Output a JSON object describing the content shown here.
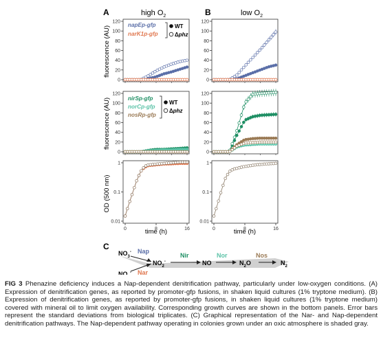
{
  "panel_labels": {
    "A": "A",
    "B": "B",
    "C": "C"
  },
  "conditions": {
    "high": "high O",
    "low": "low O",
    "sub2": "2"
  },
  "axis": {
    "fluorescence": "fluorescence (AU)",
    "od": "OD (500 nm)",
    "time": "time (h)"
  },
  "legend": {
    "wt": "WT",
    "phz": "phz",
    "delta": "Δ",
    "top": [
      "napEp-gfp",
      "narK1p-gfp"
    ],
    "mid": [
      "nirSp-gfp",
      "norCp-gfp",
      "nosRp-gfp"
    ]
  },
  "colors": {
    "nap": "#5b6fa8",
    "nar": "#e07850",
    "nir": "#1f8f64",
    "nor": "#5cc3a8",
    "nos": "#9a7a55",
    "od": "#8a7a66",
    "shade": "#c8c8c8"
  },
  "pathway": {
    "no3_top": "NO",
    "no3_bottom": "NO",
    "no3_sub": "3",
    "no3_sup": "-",
    "nap": "Nap",
    "nar": "Nar",
    "no2": "NO",
    "no2_sub": "2",
    "no2_sup": "-",
    "nir": "Nir",
    "no": "NO",
    "nor": "Nor",
    "n2o": "N",
    "n2o_sub": "2",
    "n2o_tail": "O",
    "nos": "Nos",
    "n2": "N",
    "n2_sub": "2"
  },
  "caption": {
    "fig": "FIG 3",
    "text": "Phenazine deficiency induces a Nap-dependent denitrification pathway, particularly under low-oxygen conditions. (A) Expression of denitrification genes, as reported by promoter-gfp fusions, in shaken liquid cultures (1% tryptone medium). (B) Expression of denitrification genes, as reported by promoter-gfp fusions, in shaken liquid cultures (1% tryptone medium) covered with mineral oil to limit oxygen availability. Corresponding growth curves are shown in the bottom panels. Error bars represent the standard deviations from biological triplicates. (C) Graphical representation of the Nar- and Nap-dependent denitrification pathways. The Nap-dependent pathway operating in colonies grown under an oxic atmosphere is shaded gray."
  },
  "chart_data": [
    {
      "type": "line",
      "panel": "A-top",
      "title": "high O2",
      "ylabel": "fluorescence (AU)",
      "x": [
        0,
        2,
        4,
        6,
        8,
        10,
        12,
        14,
        16
      ],
      "xlim": [
        0,
        16
      ],
      "ylim": [
        0,
        120
      ],
      "yticks": [
        0,
        20,
        40,
        60,
        80,
        100,
        120
      ],
      "series": [
        {
          "name": "napEp-gfp WT",
          "color": "#5b6fa8",
          "marker": "filled",
          "values": [
            0,
            0,
            0,
            2,
            6,
            12,
            16,
            21,
            26
          ]
        },
        {
          "name": "napEp-gfp Δphz",
          "color": "#5b6fa8",
          "marker": "open",
          "values": [
            0,
            0,
            0,
            8,
            18,
            26,
            32,
            37,
            40
          ]
        },
        {
          "name": "narK1p-gfp WT",
          "color": "#e07850",
          "marker": "filled",
          "values": [
            0,
            0,
            0,
            0,
            0,
            0,
            0,
            0,
            0
          ]
        },
        {
          "name": "narK1p-gfp Δphz",
          "color": "#e07850",
          "marker": "open",
          "values": [
            0,
            0,
            0,
            0,
            0,
            0,
            0,
            0,
            0
          ]
        }
      ]
    },
    {
      "type": "line",
      "panel": "B-top",
      "title": "low O2",
      "x": [
        0,
        2,
        4,
        6,
        8,
        10,
        12,
        14,
        16
      ],
      "xlim": [
        0,
        16
      ],
      "ylim": [
        0,
        120
      ],
      "yticks": [
        0,
        20,
        40,
        60,
        80,
        100,
        120
      ],
      "series": [
        {
          "name": "napEp-gfp WT",
          "color": "#5b6fa8",
          "marker": "filled",
          "values": [
            0,
            0,
            0,
            2,
            8,
            14,
            20,
            26,
            30
          ]
        },
        {
          "name": "napEp-gfp Δphz",
          "color": "#5b6fa8",
          "marker": "open",
          "values": [
            0,
            0,
            0,
            10,
            28,
            45,
            62,
            80,
            98
          ]
        },
        {
          "name": "narK1p-gfp WT",
          "color": "#e07850",
          "marker": "filled",
          "values": [
            0,
            0,
            0,
            0,
            0,
            0,
            0,
            0,
            0
          ]
        },
        {
          "name": "narK1p-gfp Δphz",
          "color": "#e07850",
          "marker": "open",
          "values": [
            0,
            0,
            0,
            0,
            0,
            0,
            0,
            0,
            0
          ]
        }
      ]
    },
    {
      "type": "line",
      "panel": "A-mid",
      "ylabel": "fluorescence (AU)",
      "x": [
        0,
        2,
        4,
        6,
        8,
        10,
        12,
        14,
        16
      ],
      "xlim": [
        0,
        16
      ],
      "ylim": [
        0,
        120
      ],
      "yticks": [
        0,
        20,
        40,
        60,
        80,
        100,
        120
      ],
      "series": [
        {
          "name": "nirSp-gfp WT",
          "color": "#1f8f64",
          "marker": "filled",
          "values": [
            0,
            0,
            0,
            3,
            5,
            5,
            6,
            7,
            8
          ]
        },
        {
          "name": "nirSp-gfp Δphz",
          "color": "#1f8f64",
          "marker": "open",
          "values": [
            0,
            0,
            0,
            1,
            2,
            2,
            2,
            2,
            2
          ]
        },
        {
          "name": "norCp-gfp WT",
          "color": "#5cc3a8",
          "marker": "filled",
          "values": [
            0,
            0,
            0,
            2,
            3,
            4,
            4,
            5,
            5
          ]
        },
        {
          "name": "norCp-gfp Δphz",
          "color": "#5cc3a8",
          "marker": "open",
          "values": [
            0,
            0,
            0,
            1,
            1,
            1,
            1,
            1,
            1
          ]
        },
        {
          "name": "nosRp-gfp WT",
          "color": "#9a7a55",
          "marker": "filled",
          "values": [
            0,
            0,
            0,
            0,
            0,
            0,
            0,
            0,
            0
          ]
        },
        {
          "name": "nosRp-gfp Δphz",
          "color": "#9a7a55",
          "marker": "open",
          "values": [
            0,
            0,
            0,
            0,
            0,
            0,
            0,
            0,
            0
          ]
        }
      ]
    },
    {
      "type": "line",
      "panel": "B-mid",
      "x": [
        0,
        2,
        4,
        6,
        8,
        10,
        12,
        14,
        16
      ],
      "xlim": [
        0,
        16
      ],
      "ylim": [
        0,
        120
      ],
      "yticks": [
        0,
        20,
        40,
        60,
        80,
        100,
        120
      ],
      "series": [
        {
          "name": "nirSp-gfp WT",
          "color": "#1f8f64",
          "marker": "filled",
          "values": [
            0,
            0,
            0,
            35,
            65,
            72,
            75,
            76,
            77
          ]
        },
        {
          "name": "nirSp-gfp Δphz",
          "color": "#1f8f64",
          "marker": "open",
          "values": [
            0,
            0,
            0,
            45,
            100,
            118,
            120,
            121,
            122
          ]
        },
        {
          "name": "norCp-gfp WT",
          "color": "#5cc3a8",
          "marker": "filled",
          "values": [
            0,
            0,
            0,
            10,
            14,
            15,
            16,
            16,
            16
          ]
        },
        {
          "name": "norCp-gfp Δphz",
          "color": "#5cc3a8",
          "marker": "open",
          "values": [
            0,
            0,
            0,
            12,
            16,
            17,
            18,
            18,
            18
          ]
        },
        {
          "name": "nosRp-gfp WT",
          "color": "#9a7a55",
          "marker": "filled",
          "values": [
            0,
            0,
            0,
            15,
            25,
            27,
            28,
            28,
            28
          ]
        },
        {
          "name": "nosRp-gfp Δphz",
          "color": "#9a7a55",
          "marker": "open",
          "values": [
            0,
            0,
            0,
            12,
            18,
            19,
            20,
            20,
            20
          ]
        }
      ]
    },
    {
      "type": "line",
      "panel": "A-bottom",
      "ylabel": "OD (500 nm)",
      "xlabel": "time (h)",
      "x": [
        0,
        1,
        2,
        3,
        4,
        5,
        6,
        8,
        10,
        12,
        14,
        16
      ],
      "xlim": [
        0,
        16
      ],
      "ylim": [
        0.01,
        1
      ],
      "yscale": "log",
      "yticks": [
        0.01,
        0.1,
        1
      ],
      "xticks": [
        0,
        8,
        16
      ],
      "series": [
        {
          "name": "WT",
          "color": "#e07850",
          "marker": "filled",
          "values": [
            0.015,
            0.04,
            0.1,
            0.25,
            0.5,
            0.7,
            0.8,
            0.85,
            0.9,
            0.92,
            0.95,
            0.95
          ]
        },
        {
          "name": "Δphz",
          "color": "#8a7a66",
          "marker": "open",
          "values": [
            0.015,
            0.04,
            0.1,
            0.25,
            0.5,
            0.75,
            0.85,
            0.9,
            0.95,
            1.0,
            1.05,
            1.05
          ]
        }
      ]
    },
    {
      "type": "line",
      "panel": "B-bottom",
      "xlabel": "time (h)",
      "x": [
        0,
        1,
        2,
        3,
        4,
        5,
        6,
        8,
        10,
        12,
        14,
        16
      ],
      "xlim": [
        0,
        16
      ],
      "ylim": [
        0.01,
        1
      ],
      "yscale": "log",
      "yticks": [
        0.01,
        0.1,
        1
      ],
      "xticks": [
        0,
        8,
        16
      ],
      "series": [
        {
          "name": "WT",
          "color": "#8a7a66",
          "marker": "open",
          "values": [
            0.015,
            0.04,
            0.12,
            0.3,
            0.5,
            0.6,
            0.65,
            0.75,
            0.82,
            0.88,
            0.92,
            0.95
          ]
        }
      ]
    }
  ]
}
